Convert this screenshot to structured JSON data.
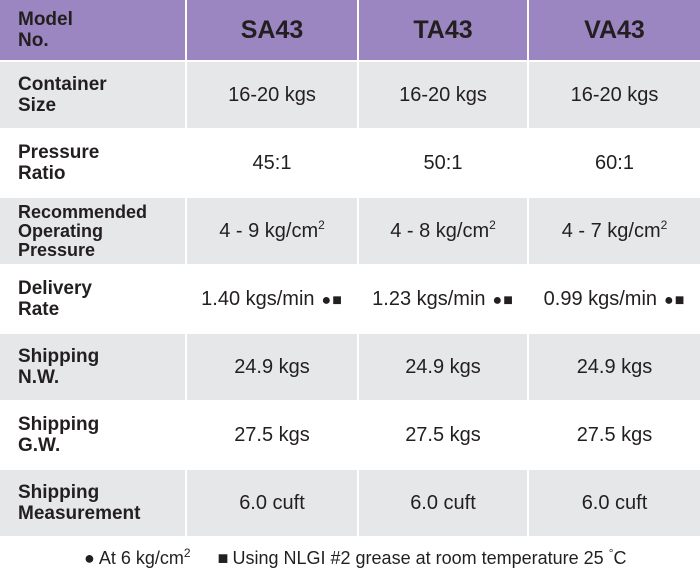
{
  "header": {
    "label": "Model\nNo.",
    "models": [
      "SA43",
      "TA43",
      "VA43"
    ]
  },
  "rows": [
    {
      "label": "Container Size",
      "values": [
        "16-20 kgs",
        "16-20 kgs",
        "16-20 kgs"
      ]
    },
    {
      "label": "Pressure Ratio",
      "values": [
        "45:1",
        "50:1",
        "60:1"
      ]
    },
    {
      "label": "Recommended Operating Pressure",
      "values": [
        "4 - 9 kg/cm",
        "4 - 8 kg/cm",
        "4 - 7 kg/cm"
      ],
      "superscript": "2"
    },
    {
      "label": "Delivery Rate",
      "values": [
        "1.40 kgs/min",
        "1.23 kgs/min",
        "0.99 kgs/min"
      ],
      "marks": "●■"
    },
    {
      "label": "Shipping N.W.",
      "values": [
        "24.9 kgs",
        "24.9 kgs",
        "24.9 kgs"
      ]
    },
    {
      "label": "Shipping G.W.",
      "values": [
        "27.5 kgs",
        "27.5 kgs",
        "27.5 kgs"
      ]
    },
    {
      "label": "Shipping Measurement",
      "values": [
        "6.0 cuft",
        "6.0 cuft",
        "6.0 cuft"
      ]
    }
  ],
  "footnotes": {
    "circle_glyph": "●",
    "circle_text": "At 6 kg/cm",
    "circle_sup": "2",
    "square_glyph": "■",
    "square_text": "Using NLGI #2 grease at room temperature 25",
    "square_degree": "°",
    "square_unit": "C"
  },
  "colors": {
    "header_bg": "#9b86c2",
    "grey_row_bg": "#e6e7e8",
    "text": "#231f20"
  }
}
